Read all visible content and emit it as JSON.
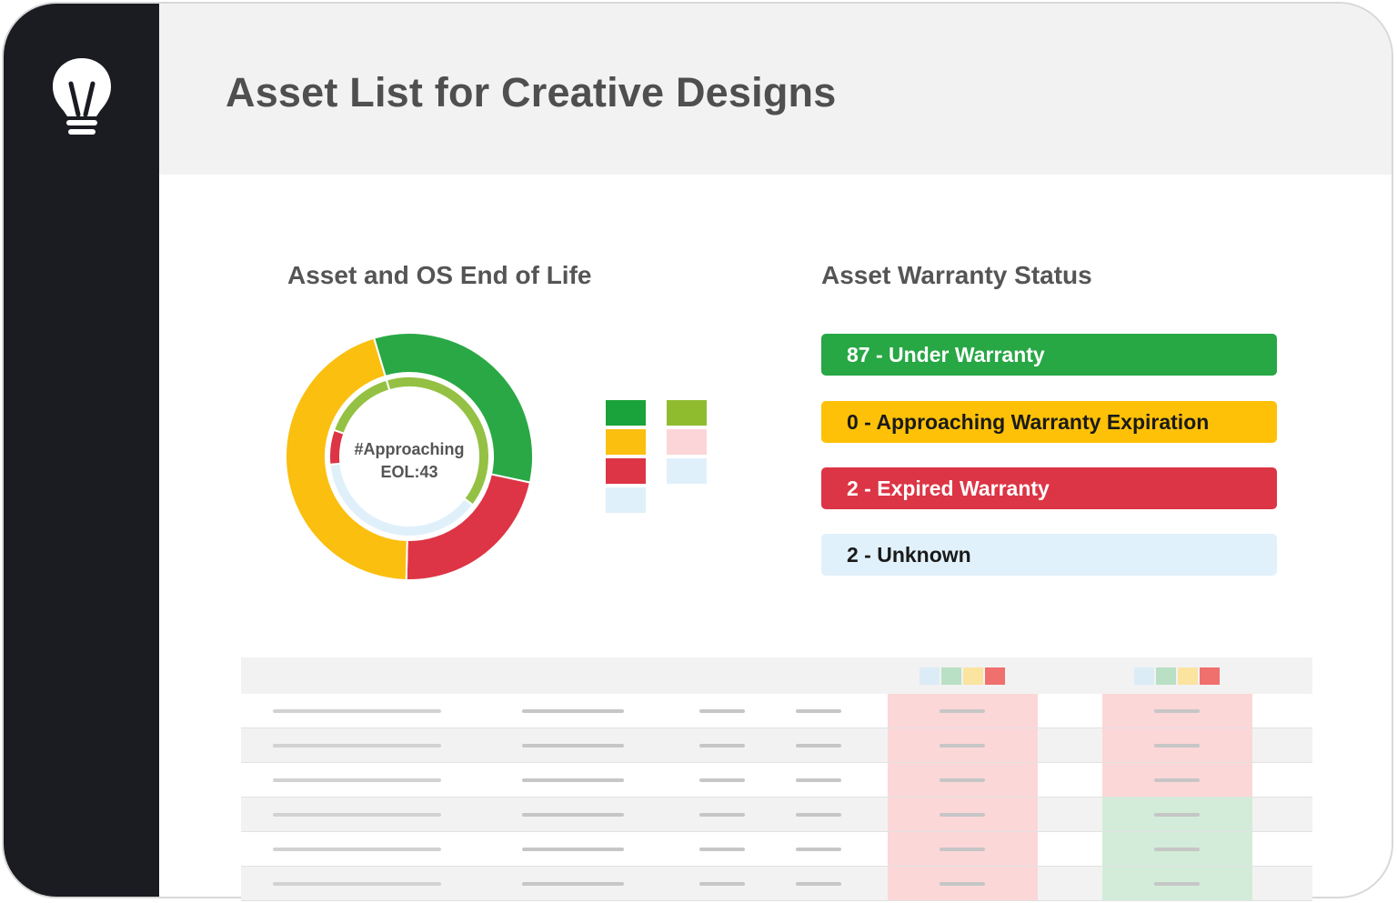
{
  "header": {
    "title": "Asset List for Creative Designs"
  },
  "icons": {
    "logo": "lightbulb-icon"
  },
  "eol_chart": {
    "title": "Asset and OS End of Life",
    "center_label_line1": "#Approaching",
    "center_label_line2": "EOL:43",
    "legend_colors": [
      "#1aa33a",
      "#8fbc2f",
      "#fbbf10",
      "#fcd5d8",
      "#dd3546",
      "#e0f0fb",
      "#e0f0fb"
    ]
  },
  "chart_data": {
    "type": "pie",
    "title": "Asset and OS End of Life",
    "rings": [
      {
        "name": "",
        "values": [
          0.33,
          0.22,
          0.45
        ],
        "colors": [
          "#2aa845",
          "#dd3546",
          "#fbbf10"
        ]
      },
      {
        "name": "",
        "values": [
          0.4,
          0.38,
          0.07,
          0.15
        ],
        "colors": [
          "#94c143",
          "#e0f0fb",
          "#dd3546",
          "#94c143"
        ]
      }
    ],
    "center_text": "#Approaching EOL:43"
  },
  "warranty": {
    "title": "Asset Warranty Status",
    "items": [
      {
        "label": "87 - Under Warranty",
        "bg": "#28a745",
        "fg": "#ffffff"
      },
      {
        "label": "0 - Approaching Warranty Expiration",
        "bg": "#ffc107",
        "fg": "#1a1a1a"
      },
      {
        "label": "2 - Expired Warranty",
        "bg": "#dc3545",
        "fg": "#ffffff"
      },
      {
        "label": "2 - Unknown",
        "bg": "#e1f1fb",
        "fg": "#1a1a1a"
      }
    ]
  },
  "table": {
    "header_legend_colors": [
      "#dcecf7",
      "#b9e0c4",
      "#fbe3a0",
      "#f0706d"
    ],
    "col5_colors": [
      "#fcd7d8",
      "#fcd7d8",
      "#fcd7d8",
      "#fcd7d8",
      "#fcd7d8",
      "#fcd7d8"
    ],
    "col6_colors": [
      "#fcd7d8",
      "#fcd7d8",
      "#fcd7d8",
      "#d2ecd9",
      "#d2ecd9",
      "#d2ecd9"
    ]
  }
}
